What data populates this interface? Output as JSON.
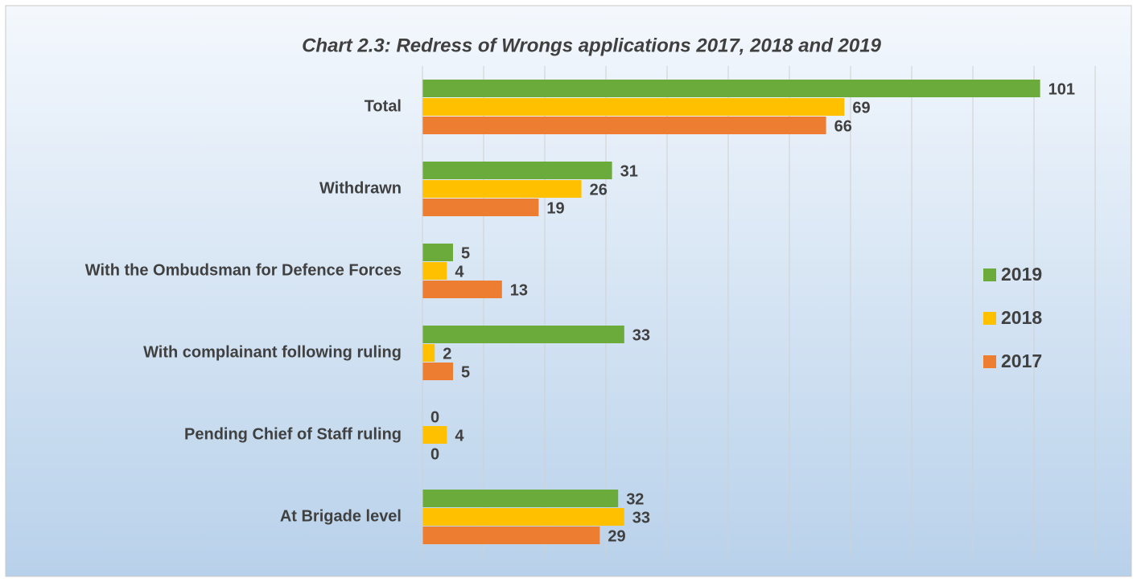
{
  "chart_data": {
    "type": "barh",
    "title": "Chart 2.3:  Redress of Wrongs applications 2017, 2018 and 2019",
    "categories": [
      "Total",
      "Withdrawn",
      "With the Ombudsman for Defence Forces",
      "With complainant following ruling",
      "Pending Chief of Staff  ruling",
      "At Brigade level"
    ],
    "series": [
      {
        "name": "2019",
        "color": "#6aab3c",
        "values": [
          101,
          31,
          5,
          33,
          0,
          32
        ]
      },
      {
        "name": "2018",
        "color": "#ffc000",
        "values": [
          69,
          26,
          4,
          2,
          4,
          33
        ]
      },
      {
        "name": "2017",
        "color": "#ed7d31",
        "values": [
          66,
          19,
          13,
          5,
          0,
          29
        ]
      }
    ],
    "xlim": [
      0,
      110
    ],
    "xticks": [
      0,
      10,
      20,
      30,
      40,
      50,
      60,
      70,
      80,
      90,
      100,
      110
    ],
    "grid": true,
    "legend": "right"
  }
}
